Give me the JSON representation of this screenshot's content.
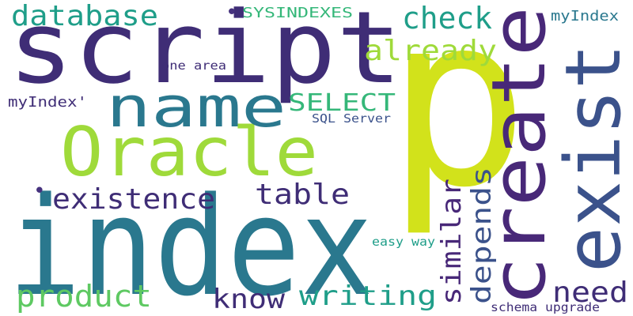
{
  "words": {
    "w_p": "p",
    "w_index": "index",
    "w_script": "script",
    "w_create": "create",
    "w_exist": "exist",
    "w_oracle": "Oracle",
    "w_name": "name",
    "w_database": "database",
    "w_check": "check",
    "w_already": "already",
    "w_existence": "existence",
    "w_table": "table",
    "w_similar": "similar",
    "w_depends": "depends",
    "w_need": "need",
    "w_product": "product",
    "w_know": "know",
    "w_writing": "writing",
    "w_select": "SELECT",
    "w_sysindexes": "SYSINDEXES",
    "w_myindex_top": "myIndex",
    "w_myindex_q": "myIndex'",
    "w_one_area": "one area",
    "w_sql_server": "SQL Server",
    "w_easy_way": "easy way",
    "w_schema_upgrade": "schema upgrade",
    "w_dot_top": "•",
    "w_dot_mid": "•"
  },
  "palette": {
    "yellow_green": "#d2e21b",
    "teal": "#2a788e",
    "dark_purple": "#3f2d76",
    "indigo": "#46327e",
    "slate_blue": "#3b528b",
    "blue_teal": "#31688e",
    "sea_green": "#1f9e89",
    "green": "#35b779",
    "light_green": "#5ec962",
    "lime": "#9fda3a",
    "deep_purple": "#440154",
    "purple": "#482878"
  }
}
